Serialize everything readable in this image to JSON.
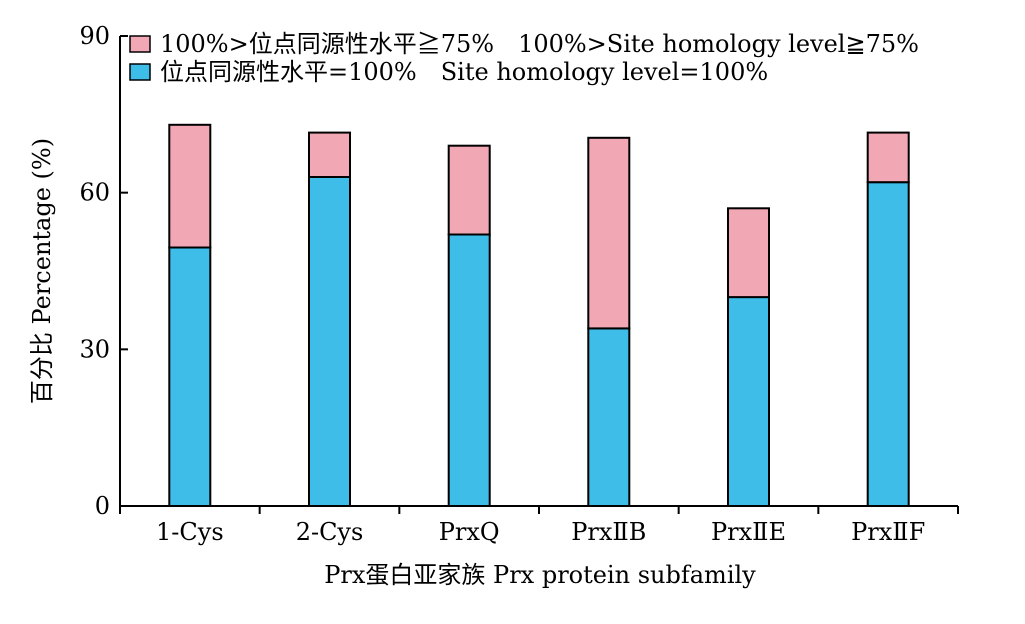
{
  "chart_data": {
    "type": "bar",
    "stacked": true,
    "categories": [
      "1-Cys",
      "2-Cys",
      "PrxQ",
      "PrxⅡB",
      "PrxⅡE",
      "PrxⅡF"
    ],
    "series": [
      {
        "name": "位点同源性水平=100% Site homology level=100%",
        "values": [
          49.5,
          63.0,
          52.0,
          34.0,
          40.0,
          62.0
        ],
        "color": "#3dbde8"
      },
      {
        "name": "100%>位点同源性水平≧75% 100%>Site homology level≧75%",
        "values": [
          23.5,
          8.5,
          17.0,
          36.5,
          17.0,
          9.5
        ],
        "color": "#f2a7b5"
      }
    ],
    "xlabel": "Prx蛋白亚家族 Prx protein subfamily",
    "ylabel": "百分比 Percentage (%)",
    "ylim": [
      0,
      90
    ],
    "yticks": [
      0,
      30,
      60,
      90
    ],
    "legend_position": "top-left",
    "grid": false
  }
}
